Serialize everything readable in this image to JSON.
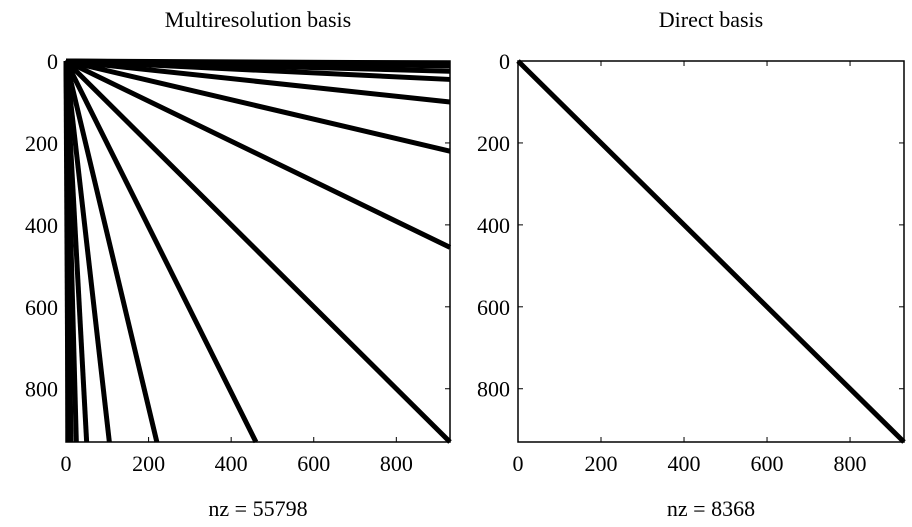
{
  "chart_data": [
    {
      "type": "spy",
      "title": "Multiresolution basis",
      "xlabel": "nz = 55798",
      "ylabel": "",
      "xlim": [
        0,
        930
      ],
      "ylim": [
        0,
        930
      ],
      "y_inverted": true,
      "xticks": [
        "0",
        "200",
        "400",
        "600",
        "800"
      ],
      "yticks": [
        "0",
        "200",
        "400",
        "600",
        "800"
      ],
      "xtick_values": [
        0,
        200,
        400,
        600,
        800
      ],
      "ytick_values": [
        0,
        200,
        400,
        600,
        800
      ],
      "nonzero_lines": [
        {
          "from": [
            0,
            0
          ],
          "to": [
            930,
            5
          ]
        },
        {
          "from": [
            0,
            0
          ],
          "to": [
            930,
            12
          ]
        },
        {
          "from": [
            0,
            0
          ],
          "to": [
            930,
            25
          ]
        },
        {
          "from": [
            0,
            0
          ],
          "to": [
            930,
            45
          ]
        },
        {
          "from": [
            0,
            0
          ],
          "to": [
            930,
            100
          ]
        },
        {
          "from": [
            0,
            0
          ],
          "to": [
            930,
            220
          ]
        },
        {
          "from": [
            0,
            0
          ],
          "to": [
            930,
            455
          ]
        },
        {
          "from": [
            0,
            0
          ],
          "to": [
            930,
            930
          ]
        },
        {
          "from": [
            0,
            0
          ],
          "to": [
            460,
            930
          ]
        },
        {
          "from": [
            0,
            0
          ],
          "to": [
            220,
            930
          ]
        },
        {
          "from": [
            0,
            0
          ],
          "to": [
            105,
            930
          ]
        },
        {
          "from": [
            0,
            0
          ],
          "to": [
            50,
            930
          ]
        },
        {
          "from": [
            0,
            0
          ],
          "to": [
            25,
            930
          ]
        },
        {
          "from": [
            0,
            0
          ],
          "to": [
            12,
            930
          ]
        },
        {
          "from": [
            0,
            0
          ],
          "to": [
            5,
            930
          ]
        }
      ]
    },
    {
      "type": "spy",
      "title": "Direct basis",
      "xlabel": "nz = 8368",
      "ylabel": "",
      "xlim": [
        0,
        930
      ],
      "ylim": [
        0,
        930
      ],
      "y_inverted": true,
      "xticks": [
        "0",
        "200",
        "400",
        "600",
        "800"
      ],
      "yticks": [
        "0",
        "200",
        "400",
        "600",
        "800"
      ],
      "xtick_values": [
        0,
        200,
        400,
        600,
        800
      ],
      "ytick_values": [
        0,
        200,
        400,
        600,
        800
      ],
      "nonzero_lines": [
        {
          "from": [
            0,
            0
          ],
          "to": [
            930,
            930
          ]
        }
      ]
    }
  ]
}
